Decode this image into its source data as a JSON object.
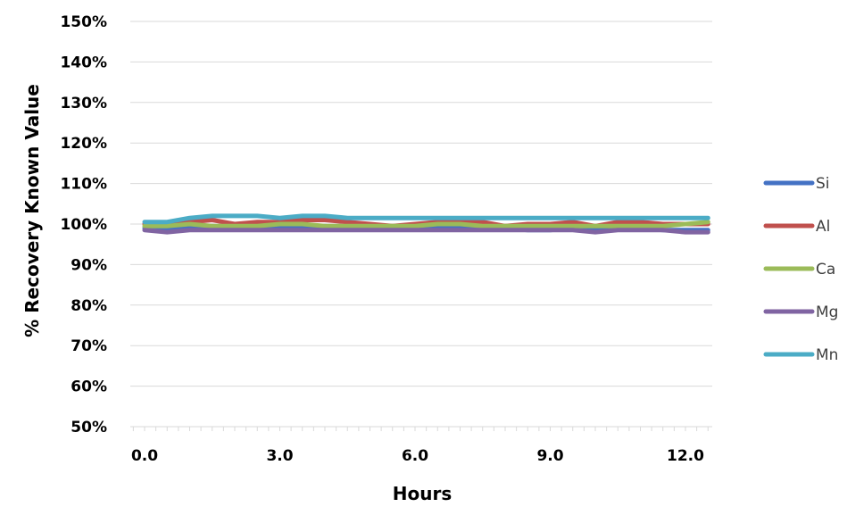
{
  "chart_data": {
    "type": "line",
    "xlabel": "Hours",
    "ylabel": "% Recovery Known Value",
    "xlim": [
      0,
      12.6
    ],
    "ylim": [
      50,
      150
    ],
    "x_ticks": [
      0,
      3,
      6,
      9,
      12
    ],
    "x_tick_labels": [
      "0.0",
      "3.0",
      "6.0",
      "9.0",
      "12.0"
    ],
    "y_ticks": [
      50,
      60,
      70,
      80,
      90,
      100,
      110,
      120,
      130,
      140,
      150
    ],
    "y_tick_labels": [
      "50%",
      "60%",
      "70%",
      "80%",
      "90%",
      "100%",
      "110%",
      "120%",
      "130%",
      "140%",
      "150%"
    ],
    "grid": true,
    "legend_position": "right",
    "x": [
      0.0,
      0.5,
      1.0,
      1.5,
      2.0,
      2.5,
      3.0,
      3.5,
      4.0,
      4.5,
      5.0,
      5.5,
      6.0,
      6.5,
      7.0,
      7.5,
      8.0,
      8.5,
      9.0,
      9.5,
      10.0,
      10.5,
      11.0,
      11.5,
      12.0,
      12.5
    ],
    "series": [
      {
        "name": "Si",
        "color": "#4472c4",
        "values": [
          99,
          99,
          99.5,
          99.5,
          99,
          99,
          99,
          99,
          99.5,
          99,
          99,
          99,
          99.5,
          99.5,
          99.5,
          99.5,
          99,
          98.5,
          98.5,
          99,
          99,
          99,
          99,
          98.5,
          98.5,
          98.5
        ]
      },
      {
        "name": "Al",
        "color": "#c0504d",
        "values": [
          100,
          100,
          100.5,
          101,
          100,
          100.5,
          100.5,
          101,
          101,
          100.5,
          100,
          99.5,
          100,
          100.5,
          101,
          100.5,
          99.5,
          100,
          100,
          100.5,
          99.5,
          100.5,
          100.5,
          100,
          100,
          100
        ]
      },
      {
        "name": "Ca",
        "color": "#9bbb59",
        "values": [
          99.5,
          99.5,
          100,
          99.5,
          99.5,
          99.5,
          100,
          100,
          99.5,
          99.5,
          99.5,
          99.5,
          99.5,
          100,
          100,
          99.5,
          99.5,
          99.5,
          99.5,
          99.5,
          99.5,
          99.5,
          99.5,
          99.5,
          100,
          100.5
        ]
      },
      {
        "name": "Mg",
        "color": "#8064a2",
        "values": [
          98.5,
          98,
          98.5,
          98.5,
          98.5,
          98.5,
          98.5,
          98.5,
          98.5,
          98.5,
          98.5,
          98.5,
          98.5,
          98.5,
          98.5,
          98.5,
          98.5,
          98.5,
          98.5,
          98.5,
          98,
          98.5,
          98.5,
          98.5,
          98,
          98
        ]
      },
      {
        "name": "Mn",
        "color": "#4bacc6",
        "values": [
          100.5,
          100.5,
          101.5,
          102,
          102,
          102,
          101.5,
          102,
          102,
          101.5,
          101.5,
          101.5,
          101.5,
          101.5,
          101.5,
          101.5,
          101.5,
          101.5,
          101.5,
          101.5,
          101.5,
          101.5,
          101.5,
          101.5,
          101.5,
          101.5
        ]
      }
    ]
  }
}
